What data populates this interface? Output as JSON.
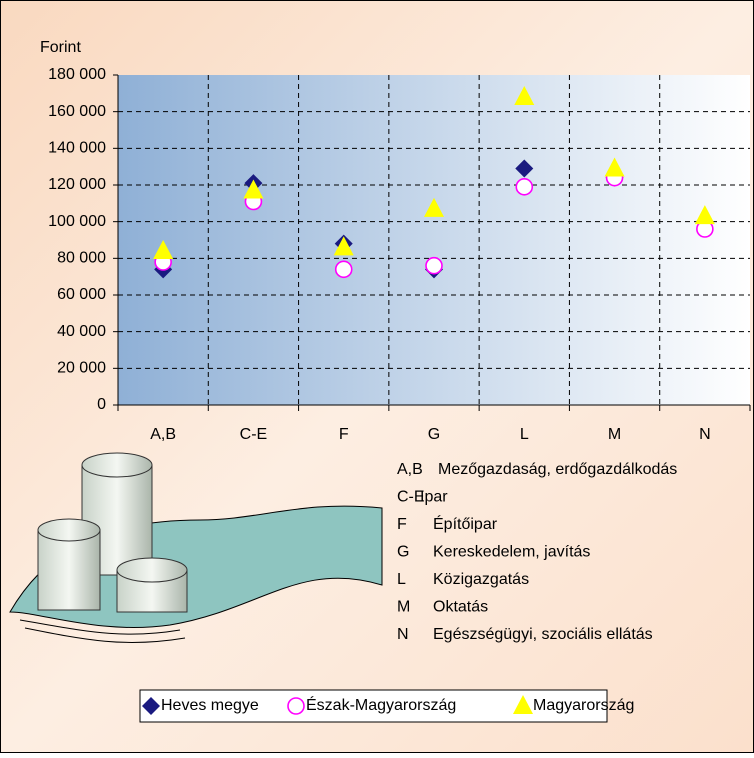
{
  "chart_data": {
    "type": "scatter",
    "y_label": "Forint",
    "categories": [
      "A,B",
      "C-E",
      "F",
      "G",
      "L",
      "M",
      "N"
    ],
    "series": [
      {
        "name": "Heves megye",
        "color": "#1a1a80",
        "marker": "diamond",
        "values": [
          74000,
          121000,
          88000,
          74000,
          129000,
          124000,
          100000
        ]
      },
      {
        "name": "Észak-Magyarország",
        "color": "#ff00ff",
        "marker": "circle",
        "values": [
          78000,
          111000,
          74000,
          76000,
          119000,
          124000,
          96000
        ]
      },
      {
        "name": "Magyarország",
        "color": "#ffff00",
        "marker": "triangle",
        "values": [
          84000,
          117000,
          86000,
          107000,
          168000,
          129000,
          103000
        ]
      }
    ],
    "ylim": [
      0,
      180000
    ],
    "yticks": [
      0,
      {
        "value": 20000,
        "label": "20 000"
      },
      {
        "value": 40000,
        "label": "40 000"
      },
      {
        "value": 60000,
        "label": "60 000"
      },
      {
        "value": 80000,
        "label": "80 000"
      },
      {
        "value": 100000,
        "label": "100 000"
      },
      {
        "value": 120000,
        "label": "120 000"
      },
      {
        "value": 140000,
        "label": "140 000"
      },
      {
        "value": 160000,
        "label": "160 000"
      },
      {
        "value": 180000,
        "label": "180 000"
      }
    ],
    "grid": true,
    "category_notes": [
      {
        "code": "A,B",
        "text": "Mezőgazdaság, erdőgazdálkodás"
      },
      {
        "code": "C-E",
        "text": "Ipar"
      },
      {
        "code": "F",
        "text": "Építőipar"
      },
      {
        "code": "G",
        "text": "Kereskedelem, javítás"
      },
      {
        "code": "L",
        "text": "Közigazgatás"
      },
      {
        "code": "M",
        "text": "Oktatás"
      },
      {
        "code": "N",
        "text": "Egészségügyi, szociális ellátás"
      }
    ]
  }
}
